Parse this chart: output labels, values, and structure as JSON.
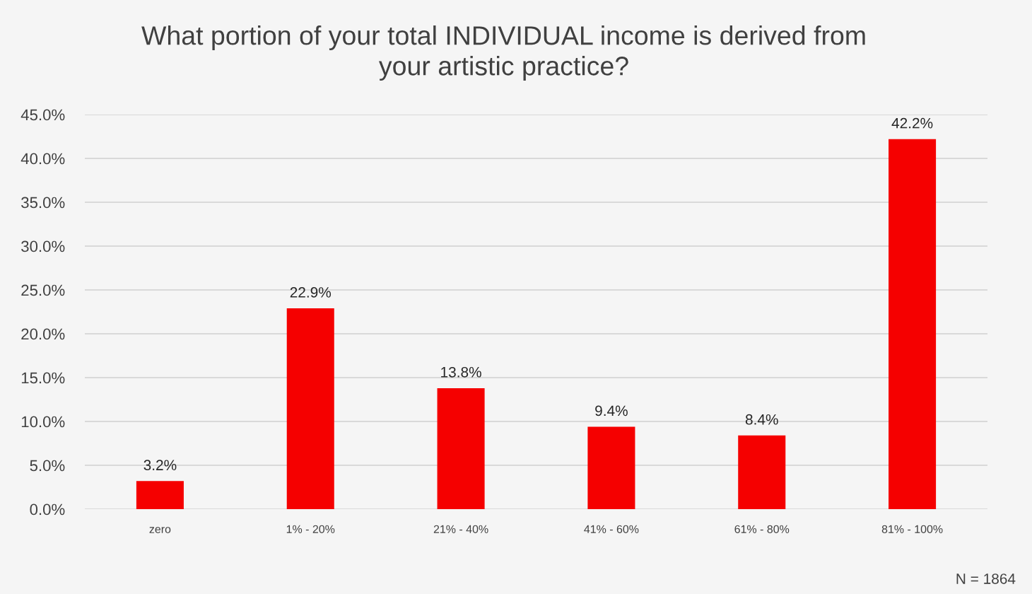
{
  "chart_data": {
    "type": "bar",
    "title": "What portion of your total INDIVIDUAL income is derived from\nyour artistic practice?",
    "categories": [
      "zero",
      "1% - 20%",
      "21% - 40%",
      "41% - 60%",
      "61% - 80%",
      "81% - 100%"
    ],
    "values": [
      3.2,
      22.9,
      13.8,
      9.4,
      8.4,
      42.2
    ],
    "color": "#f50000",
    "value_labels": [
      "3.2%",
      "22.9%",
      "13.8%",
      "9.4%",
      "8.4%",
      "42.2%"
    ],
    "ylim": [
      0,
      45
    ],
    "yticks": [
      {
        "value": 0,
        "label": "0.0%"
      },
      {
        "value": 5,
        "label": "5.0%"
      },
      {
        "value": 10,
        "label": "10.0%"
      },
      {
        "value": 15,
        "label": "15.0%"
      },
      {
        "value": 20,
        "label": "20.0%"
      },
      {
        "value": 25,
        "label": "25.0%"
      },
      {
        "value": 30,
        "label": "30.0%"
      },
      {
        "value": 35,
        "label": "35.0%"
      },
      {
        "value": 40,
        "label": "40.0%"
      },
      {
        "value": 45,
        "label": "45.0%"
      }
    ],
    "grid": "y",
    "annotations": [
      "N = 1864"
    ]
  }
}
